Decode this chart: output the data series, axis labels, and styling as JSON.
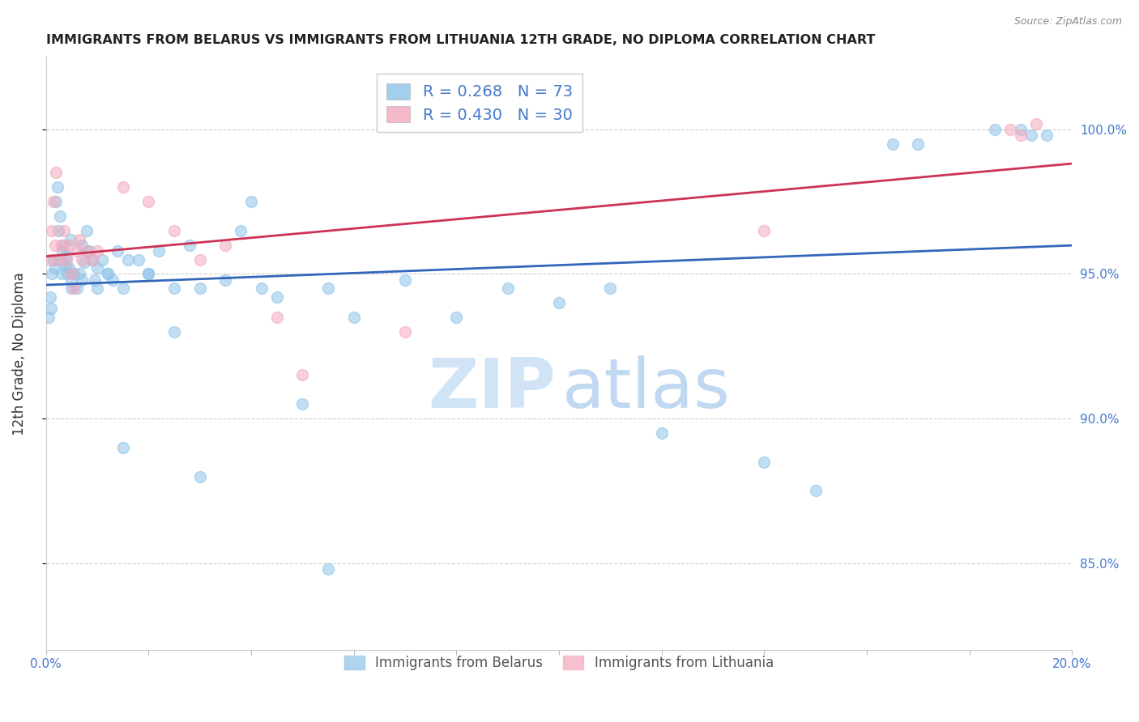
{
  "title": "IMMIGRANTS FROM BELARUS VS IMMIGRANTS FROM LITHUANIA 12TH GRADE, NO DIPLOMA CORRELATION CHART",
  "source": "Source: ZipAtlas.com",
  "ylabel": "12th Grade, No Diploma",
  "r_belarus": 0.268,
  "n_belarus": 73,
  "r_lithuania": 0.43,
  "n_lithuania": 30,
  "color_belarus": "#8ec4e8",
  "color_lithuania": "#f4a8bc",
  "line_color_belarus": "#3366bb",
  "line_color_lithuania": "#cc3355",
  "xlim": [
    0.0,
    20.0
  ],
  "ylim": [
    82.0,
    102.5
  ],
  "yticks": [
    85.0,
    90.0,
    95.0,
    100.0
  ],
  "xticks": [
    0.0,
    2.0,
    4.0,
    6.0,
    8.0,
    10.0,
    12.0,
    14.0,
    16.0,
    18.0,
    20.0
  ],
  "belarus_x": [
    0.05,
    0.08,
    0.1,
    0.12,
    0.15,
    0.18,
    0.2,
    0.22,
    0.25,
    0.28,
    0.3,
    0.32,
    0.35,
    0.38,
    0.4,
    0.42,
    0.45,
    0.48,
    0.5,
    0.55,
    0.6,
    0.65,
    0.7,
    0.75,
    0.8,
    0.85,
    0.9,
    0.95,
    1.0,
    1.1,
    1.2,
    1.3,
    1.4,
    1.5,
    1.6,
    1.8,
    2.0,
    2.2,
    2.5,
    2.8,
    3.0,
    3.5,
    3.8,
    4.0,
    4.5,
    5.0,
    5.5,
    6.0,
    7.0,
    8.0,
    9.0,
    10.0,
    11.0,
    12.0,
    14.0,
    15.0,
    16.5,
    17.0,
    18.5,
    19.0,
    19.2,
    19.5,
    0.3,
    0.5,
    0.7,
    1.0,
    1.2,
    1.5,
    2.0,
    2.5,
    3.0,
    4.2,
    5.5
  ],
  "belarus_y": [
    93.5,
    94.2,
    93.8,
    95.0,
    95.5,
    95.2,
    97.5,
    98.0,
    96.5,
    97.0,
    95.5,
    95.8,
    96.0,
    95.3,
    95.6,
    95.0,
    95.2,
    96.2,
    94.8,
    95.0,
    94.5,
    95.0,
    96.0,
    95.4,
    96.5,
    95.8,
    95.5,
    94.8,
    94.5,
    95.5,
    95.0,
    94.8,
    95.8,
    94.5,
    95.5,
    95.5,
    95.0,
    95.8,
    94.5,
    96.0,
    94.5,
    94.8,
    96.5,
    97.5,
    94.2,
    90.5,
    94.5,
    93.5,
    94.8,
    93.5,
    94.5,
    94.0,
    94.5,
    89.5,
    88.5,
    87.5,
    99.5,
    99.5,
    100.0,
    100.0,
    99.8,
    99.8,
    95.0,
    94.5,
    94.8,
    95.2,
    95.0,
    89.0,
    95.0,
    93.0,
    88.0,
    94.5,
    84.8
  ],
  "lithuania_x": [
    0.08,
    0.12,
    0.15,
    0.18,
    0.2,
    0.25,
    0.3,
    0.35,
    0.4,
    0.45,
    0.5,
    0.55,
    0.6,
    0.65,
    0.7,
    0.8,
    0.9,
    1.0,
    1.5,
    2.0,
    2.5,
    3.0,
    3.5,
    4.5,
    5.0,
    7.0,
    14.0,
    18.8,
    19.0,
    19.3
  ],
  "lithuania_y": [
    95.5,
    96.5,
    97.5,
    96.0,
    98.5,
    95.5,
    96.0,
    96.5,
    95.5,
    96.0,
    95.0,
    94.5,
    95.8,
    96.2,
    95.5,
    95.8,
    95.5,
    95.8,
    98.0,
    97.5,
    96.5,
    95.5,
    96.0,
    93.5,
    91.5,
    93.0,
    96.5,
    100.0,
    99.8,
    100.2
  ],
  "marker_size": 100,
  "marker_alpha": 0.55,
  "yticklabel_color": "#4477cc",
  "xticklabel_color": "#4477cc",
  "title_color": "#222222",
  "watermark_zip_color": "#d0e4f5",
  "watermark_atlas_color": "#c0d8f0"
}
